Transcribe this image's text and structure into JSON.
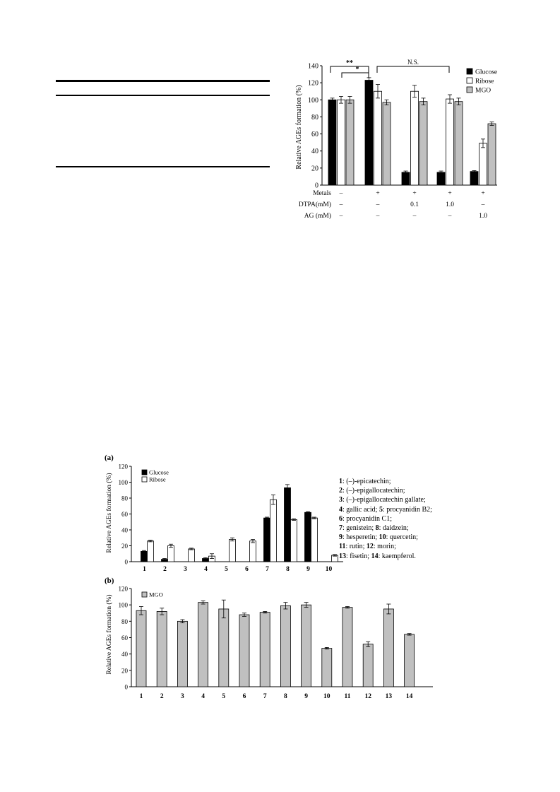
{
  "chart_data": [
    {
      "type": "bar",
      "ylabel": "Relative AGEs formation (%)",
      "ylim": [
        0,
        140
      ],
      "yticks": [
        0,
        20,
        40,
        60,
        80,
        100,
        120,
        140
      ],
      "grid": false,
      "legend_position": "top-right",
      "series": [
        {
          "name": "Glucose",
          "color": "#000000",
          "values": [
            100,
            123,
            15,
            15,
            16
          ],
          "errors": [
            2,
            3,
            1.5,
            1.5,
            1
          ]
        },
        {
          "name": "Ribose",
          "color": "#ffffff",
          "values": [
            100,
            110,
            110,
            101,
            49
          ],
          "errors": [
            4,
            8,
            7,
            5,
            5
          ]
        },
        {
          "name": "MGO",
          "color": "#c0c0c0",
          "values": [
            100,
            97,
            98,
            98,
            72
          ],
          "errors": [
            4,
            3,
            4,
            4,
            2
          ]
        }
      ],
      "condition_rows": [
        {
          "label": "Metals",
          "values": [
            "–",
            "+",
            "+",
            "+",
            "+"
          ]
        },
        {
          "label": "DTPA(mM)",
          "values": [
            "–",
            "–",
            "0.1",
            "1.0",
            "–"
          ]
        },
        {
          "label": "AG (mM)",
          "values": [
            "–",
            "–",
            "–",
            "–",
            "1.0"
          ]
        }
      ],
      "annotations": [
        "**",
        "*",
        "N.S."
      ]
    },
    {
      "panel_label": "(a)",
      "type": "bar",
      "ylabel": "Relative AGEs formation (%)",
      "ylim": [
        0,
        120
      ],
      "yticks": [
        0,
        20,
        40,
        60,
        80,
        100,
        120
      ],
      "grid": false,
      "legend_position": "top-left",
      "categories": [
        "1",
        "2",
        "3",
        "4",
        "5",
        "6",
        "7",
        "8",
        "9",
        "10"
      ],
      "series": [
        {
          "name": "Glucose",
          "color": "#000000",
          "values": [
            13,
            3,
            0,
            4,
            0,
            0,
            55,
            93,
            62,
            0
          ],
          "errors": [
            1,
            1,
            0,
            1,
            0,
            0,
            1,
            4,
            1,
            0
          ]
        },
        {
          "name": "Ribose",
          "color": "#ffffff",
          "values": [
            26,
            20,
            16,
            7,
            28,
            26,
            78,
            53,
            55,
            8
          ],
          "errors": [
            1,
            2,
            1,
            3,
            2,
            2,
            6,
            1,
            1,
            1
          ]
        }
      ]
    },
    {
      "panel_label": "(b)",
      "type": "bar",
      "ylabel": "Relative AGEs formation (%)",
      "ylim": [
        0,
        120
      ],
      "yticks": [
        0,
        20,
        40,
        60,
        80,
        100,
        120
      ],
      "grid": false,
      "legend_position": "top-left",
      "categories": [
        "1",
        "2",
        "3",
        "4",
        "5",
        "6",
        "7",
        "8",
        "9",
        "10",
        "11",
        "12",
        "13",
        "14"
      ],
      "series": [
        {
          "name": "MGO",
          "color": "#c0c0c0",
          "values": [
            93,
            92,
            80,
            103,
            95,
            88,
            91,
            99,
            100,
            47,
            97,
            52,
            95,
            64
          ],
          "errors": [
            5,
            4,
            2,
            2,
            11,
            2,
            1,
            4,
            3,
            1,
            1,
            3,
            6,
            1
          ]
        }
      ]
    }
  ],
  "compound_legend": [
    [
      {
        "num": "1",
        "text": ": (–)-epicatechin;"
      }
    ],
    [
      {
        "num": "2",
        "text": ": (–)-epigallocatechin;"
      }
    ],
    [
      {
        "num": "3",
        "text": ": (–)-epigallocatechin gallate;"
      }
    ],
    [
      {
        "num": "4",
        "text": ": gallic acid; "
      },
      {
        "num": "5",
        "text": ": procyanidin B2;"
      }
    ],
    [
      {
        "num": "6",
        "text": ": procyanidin C1;"
      }
    ],
    [
      {
        "num": "7",
        "text": ": genistein; "
      },
      {
        "num": "8",
        "text": ": daidzein;"
      }
    ],
    [
      {
        "num": "9",
        "text": ": hesperetin; "
      },
      {
        "num": "10",
        "text": ": quercetin;"
      }
    ],
    [
      {
        "num": "11",
        "text": ": rutin; "
      },
      {
        "num": "12",
        "text": ": morin;"
      }
    ],
    [
      {
        "num": "13",
        "text": ": fisetin; "
      },
      {
        "num": "14",
        "text": ": kaempferol."
      }
    ]
  ]
}
